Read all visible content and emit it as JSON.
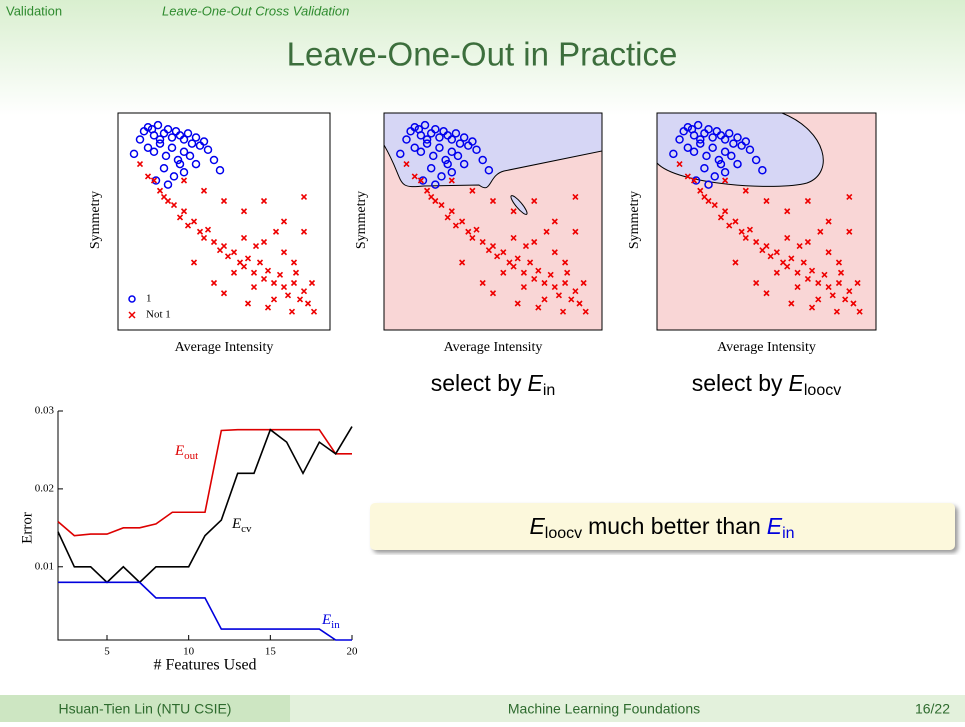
{
  "header": {
    "section": "Validation",
    "subsection": "Leave-One-Out Cross Validation"
  },
  "title": "Leave-One-Out in Practice",
  "scatter": {
    "type": "scatter",
    "xlabel": "Average Intensity",
    "ylabel": "Symmetry",
    "xlim": [
      0,
      1
    ],
    "ylim": [
      0,
      1
    ],
    "series": [
      {
        "name": "1",
        "color": "#0000ee",
        "x": [
          0.05,
          0.08,
          0.1,
          0.12,
          0.14,
          0.15,
          0.17,
          0.18,
          0.2,
          0.22,
          0.24,
          0.26,
          0.28,
          0.3,
          0.32,
          0.34,
          0.36,
          0.38,
          0.4,
          0.42,
          0.12,
          0.15,
          0.18,
          0.21,
          0.24,
          0.27,
          0.3,
          0.33,
          0.36,
          0.2,
          0.25,
          0.3,
          0.16,
          0.22,
          0.28,
          0.45,
          0.48
        ],
        "y": [
          0.83,
          0.9,
          0.94,
          0.96,
          0.95,
          0.92,
          0.97,
          0.9,
          0.93,
          0.95,
          0.91,
          0.94,
          0.92,
          0.9,
          0.93,
          0.88,
          0.91,
          0.87,
          0.89,
          0.85,
          0.86,
          0.84,
          0.88,
          0.82,
          0.86,
          0.8,
          0.84,
          0.82,
          0.78,
          0.76,
          0.72,
          0.74,
          0.7,
          0.68,
          0.78,
          0.8,
          0.75
        ]
      },
      {
        "name": "Not 1",
        "color": "#ee0000",
        "x": [
          0.08,
          0.12,
          0.15,
          0.18,
          0.2,
          0.22,
          0.25,
          0.28,
          0.3,
          0.32,
          0.35,
          0.38,
          0.4,
          0.42,
          0.45,
          0.48,
          0.5,
          0.52,
          0.55,
          0.58,
          0.6,
          0.62,
          0.65,
          0.68,
          0.7,
          0.72,
          0.75,
          0.78,
          0.8,
          0.82,
          0.85,
          0.88,
          0.9,
          0.92,
          0.95,
          0.3,
          0.4,
          0.5,
          0.6,
          0.7,
          0.8,
          0.9,
          0.55,
          0.65,
          0.75,
          0.85,
          0.45,
          0.35,
          0.6,
          0.7,
          0.8,
          0.9,
          0.5,
          0.62,
          0.72,
          0.84,
          0.66,
          0.76,
          0.86,
          0.94
        ],
        "y": [
          0.78,
          0.72,
          0.7,
          0.65,
          0.62,
          0.6,
          0.58,
          0.52,
          0.55,
          0.48,
          0.5,
          0.45,
          0.42,
          0.46,
          0.4,
          0.36,
          0.38,
          0.33,
          0.35,
          0.3,
          0.28,
          0.32,
          0.25,
          0.3,
          0.22,
          0.26,
          0.2,
          0.24,
          0.18,
          0.14,
          0.2,
          0.12,
          0.16,
          0.1,
          0.06,
          0.7,
          0.65,
          0.6,
          0.55,
          0.6,
          0.5,
          0.45,
          0.25,
          0.18,
          0.12,
          0.3,
          0.2,
          0.3,
          0.42,
          0.4,
          0.35,
          0.62,
          0.15,
          0.1,
          0.08,
          0.06,
          0.38,
          0.45,
          0.25,
          0.2
        ]
      }
    ]
  },
  "captions": [
    {
      "text": "select by",
      "E": "E",
      "sub": "in"
    },
    {
      "text": "select by",
      "E": "E",
      "sub": "loocv"
    }
  ],
  "chart_data": {
    "type": "line",
    "xlabel": "# Features Used",
    "ylabel": "Error",
    "x": [
      2,
      3,
      4,
      5,
      6,
      7,
      8,
      9,
      10,
      11,
      12,
      13,
      14,
      15,
      16,
      17,
      18,
      19,
      20
    ],
    "xlim": [
      2,
      20
    ],
    "xticks": [
      5,
      10,
      15,
      20
    ],
    "ylim": [
      0.0006,
      0.03
    ],
    "yticks": [
      0.01,
      0.02,
      0.03
    ],
    "series": [
      {
        "name": "E",
        "subscript": "out",
        "color": "#dd0000",
        "values": [
          0.0158,
          0.014,
          0.0142,
          0.0142,
          0.015,
          0.015,
          0.0155,
          0.017,
          0.017,
          0.017,
          0.0275,
          0.0276,
          0.0276,
          0.0276,
          0.0276,
          0.0276,
          0.0276,
          0.0245,
          0.0245
        ]
      },
      {
        "name": "E",
        "subscript": "cv",
        "color": "#000000",
        "values": [
          0.0145,
          0.01,
          0.01,
          0.008,
          0.01,
          0.008,
          0.01,
          0.01,
          0.01,
          0.014,
          0.016,
          0.022,
          0.022,
          0.0276,
          0.026,
          0.022,
          0.026,
          0.0245,
          0.028
        ]
      },
      {
        "name": "E",
        "subscript": "in",
        "color": "#0000dd",
        "values": [
          0.008,
          0.008,
          0.008,
          0.008,
          0.008,
          0.008,
          0.006,
          0.006,
          0.006,
          0.006,
          0.002,
          0.002,
          0.002,
          0.002,
          0.002,
          0.002,
          0.002,
          0.0006,
          0.0006
        ]
      }
    ]
  },
  "callout": {
    "E1": "E",
    "sub1": "loocv",
    "text": "much better than",
    "E2": "E",
    "sub2": "in"
  },
  "footer": {
    "author": "Hsuan-Tien Lin (NTU CSIE)",
    "course": "Machine Learning Foundations",
    "page": "16/22"
  }
}
